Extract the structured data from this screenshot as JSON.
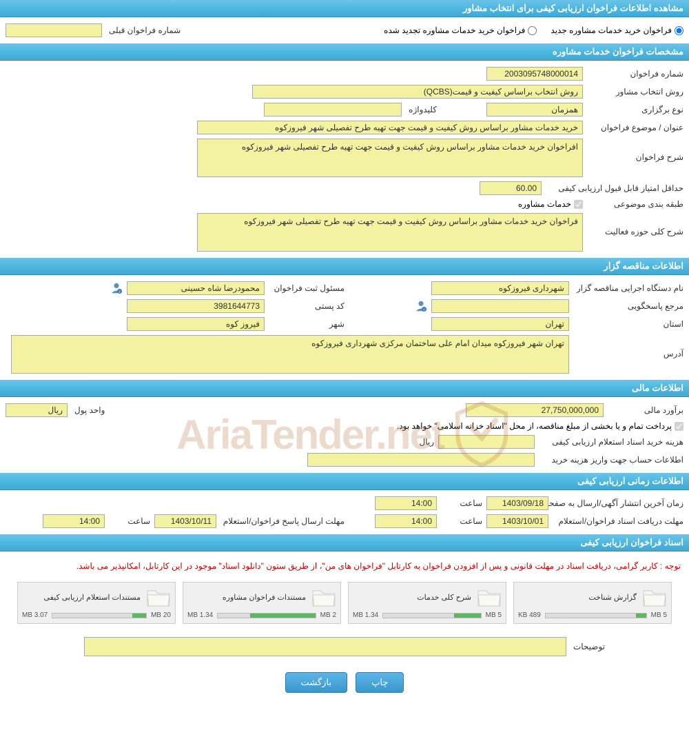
{
  "page_title": "مشاهده اطلاعات فراخوان ارزیابی کیفی برای انتخاب مشاور",
  "radio": {
    "option1": "فراخوان خرید خدمات مشاوره جدید",
    "option2": "فراخوان خرید خدمات مشاوره تجدید شده",
    "prev_number_label": "شماره فراخوان قبلی"
  },
  "section_specs": "مشخصات فراخوان خدمات مشاوره",
  "specs": {
    "number_label": "شماره فراخوان",
    "number": "2003095748000014",
    "method_label": "روش انتخاب مشاور",
    "method": "روش انتخاب براساس کیفیت و قیمت(QCBS)",
    "holding_label": "نوع برگزاری",
    "holding": "همزمان",
    "keyword_label": "کلیدواژه",
    "keyword": "",
    "subject_label": "عنوان / موضوع فراخوان",
    "subject": "خرید خدمات مشاور براساس روش کیفیت و قیمت جهت تهیه طرح تفصیلی شهر فیروزکوه",
    "desc_label": "شرح فراخوان",
    "desc": "افراخوان خرید خدمات مشاور براساس روش کیفیت و قیمت جهت تهیه طرح تفصیلی شهر فیروزکوه",
    "min_score_label": "حداقل امتیاز قابل قبول ارزیابی کیفی",
    "min_score": "60.00",
    "category_label": "طبقه بندی موضوعی",
    "category_check": "خدمات مشاوره",
    "activity_label": "شرح کلی حوزه فعالیت",
    "activity": "فراخوان خرید خدمات مشاور براساس روش کیفیت و قیمت جهت تهیه طرح تفصیلی شهر فیروزکوه"
  },
  "section_org": "اطلاعات مناقصه گزار",
  "org": {
    "org_label": "نام دستگاه اجرایی مناقصه گزار",
    "org": "شهرداری فیروزکوه",
    "registrar_label": "مسئول ثبت فراخوان",
    "registrar": "محمودرضا شاه حسینی",
    "contact_label": "مرجع پاسخگویی",
    "contact": "",
    "postal_label": "کد پستی",
    "postal": "3981644773",
    "province_label": "استان",
    "province": "تهران",
    "city_label": "شهر",
    "city": "فیروز کوه",
    "address_label": "آدرس",
    "address": "تهران شهر فیروزکوه میدان امام علی ساختمان مرکزی شهرداری فیروزکوه"
  },
  "section_financial": "اطلاعات مالی",
  "financial": {
    "estimate_label": "برآورد مالی",
    "estimate": "27,750,000,000",
    "currency_label": "واحد پول",
    "currency": "ریال",
    "note": "پرداخت تمام و یا بخشی از مبلغ مناقصه، از محل \"اسناد خزانه اسلامی\" خواهد بود.",
    "doc_cost_label": "هزینه خرید اسناد استعلام ارزیابی کیفی",
    "doc_cost": "",
    "doc_cost_unit": "ریال",
    "account_label": "اطلاعات حساب جهت واریز هزینه خرید",
    "account": ""
  },
  "section_timing": "اطلاعات زمانی ارزیابی کیفی",
  "timing": {
    "publish_label": "زمان آخرین انتشار آگهی/ارسال به صفحه اعلان عمومی",
    "publish_date": "1403/09/18",
    "time_label": "ساعت",
    "publish_time": "14:00",
    "receive_label": "مهلت دریافت اسناد فراخوان/استعلام",
    "receive_date": "1403/10/01",
    "receive_time": "14:00",
    "reply_label": "مهلت ارسال پاسخ فراخوان/استعلام",
    "reply_date": "1403/10/11",
    "reply_time": "14:00"
  },
  "section_docs": "اسناد فراخوان ارزیابی کیفی",
  "notice": "توجه : کاربر گرامی، دریافت اسناد در مهلت قانونی و پس از افزودن فراخوان به کارتابل \"فراخوان های من\"، از طریق ستون \"دانلود اسناد\" موجود در این کارتابل، امکانپذیر می باشد.",
  "files": [
    {
      "title": "گزارش شناخت",
      "used": "489 KB",
      "total": "5 MB",
      "pct": 10
    },
    {
      "title": "شرح کلی خدمات",
      "used": "1.34 MB",
      "total": "5 MB",
      "pct": 27
    },
    {
      "title": "مستندات فراخوان مشاوره",
      "used": "1.34 MB",
      "total": "2 MB",
      "pct": 67
    },
    {
      "title": "مستندات استعلام ارزیابی کیفی",
      "used": "3.07 MB",
      "total": "20 MB",
      "pct": 15
    }
  ],
  "description_label": "توضیحات",
  "buttons": {
    "print": "چاپ",
    "back": "بازگشت"
  },
  "watermark_text": "AriaTender.net",
  "colors": {
    "header_bg": "#4db8e0",
    "field_bg": "#f2f2a0",
    "notice_color": "#cc0000",
    "btn_bg": "#3a97cc",
    "bar_fill": "#5cb85c"
  }
}
